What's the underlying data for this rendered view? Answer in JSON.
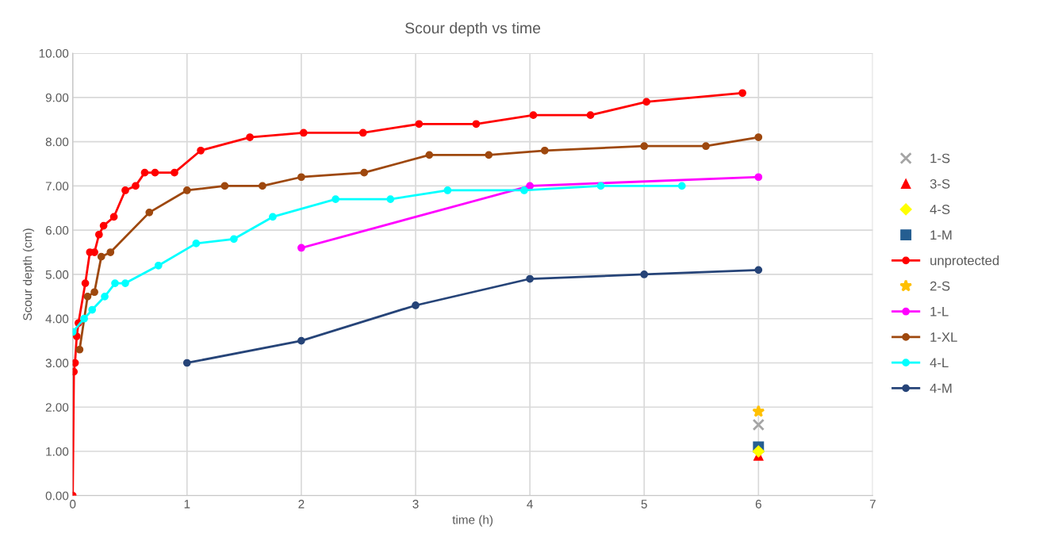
{
  "chart_data": {
    "type": "line",
    "title": "Scour depth vs time",
    "xlabel": "time (h)",
    "ylabel": "Scour depth (cm)",
    "xlim": [
      0,
      7
    ],
    "xticks": [
      0,
      1,
      2,
      3,
      4,
      5,
      6,
      7
    ],
    "ylim": [
      0,
      10
    ],
    "yticks": [
      {
        "value": 0,
        "label": "0.00"
      },
      {
        "value": 1,
        "label": "1.00"
      },
      {
        "value": 2,
        "label": "2.00"
      },
      {
        "value": 3,
        "label": "3.00"
      },
      {
        "value": 4,
        "label": "4.00"
      },
      {
        "value": 5,
        "label": "5.00"
      },
      {
        "value": 6,
        "label": "6.00"
      },
      {
        "value": 7,
        "label": "7.00"
      },
      {
        "value": 8,
        "label": "8.00"
      },
      {
        "value": 9,
        "label": "9.00"
      },
      {
        "value": 10,
        "label": "10.00"
      }
    ],
    "grid": true,
    "legend": "right",
    "series": [
      {
        "name": "1-S",
        "type": "scatter",
        "marker": "cross",
        "color": "#a5a5a5",
        "x": [
          6
        ],
        "values": [
          1.6
        ]
      },
      {
        "name": "3-S",
        "type": "scatter",
        "marker": "triangle",
        "color": "#ff0000",
        "x": [
          6
        ],
        "values": [
          0.9
        ]
      },
      {
        "name": "4-S",
        "type": "scatter",
        "marker": "diamond",
        "color": "#ffff00",
        "x": [
          6
        ],
        "values": [
          1.0
        ]
      },
      {
        "name": "1-M",
        "type": "scatter",
        "marker": "square",
        "color": "#255e91",
        "x": [
          6
        ],
        "values": [
          1.1
        ]
      },
      {
        "name": "unprotected",
        "marker": "circle",
        "color": "#ff0000",
        "x": [
          0,
          0.01,
          0.02,
          0.035,
          0.05,
          0.11,
          0.15,
          0.19,
          0.23,
          0.27,
          0.36,
          0.46,
          0.55,
          0.63,
          0.72,
          0.89,
          1.12,
          1.55,
          2.02,
          2.54,
          3.03,
          3.53,
          4.03,
          4.53,
          5.02,
          5.86
        ],
        "values": [
          0,
          2.8,
          3.0,
          3.6,
          3.9,
          4.8,
          5.5,
          5.5,
          5.9,
          6.1,
          6.3,
          6.9,
          7.0,
          7.3,
          7.3,
          7.3,
          7.8,
          8.1,
          8.2,
          8.2,
          8.4,
          8.4,
          8.6,
          8.6,
          8.9,
          9.1
        ]
      },
      {
        "name": "2-S",
        "type": "scatter",
        "marker": "star",
        "color": "#ffc000",
        "x": [
          6
        ],
        "values": [
          1.9
        ]
      },
      {
        "name": "1-L",
        "marker": "circle",
        "color": "#ff00ff",
        "x": [
          2,
          4,
          6
        ],
        "values": [
          5.6,
          7.0,
          7.2
        ]
      },
      {
        "name": "1-XL",
        "marker": "circle",
        "color": "#9e480e",
        "x": [
          0.06,
          0.13,
          0.19,
          0.25,
          0.33,
          0.67,
          1.0,
          1.33,
          1.66,
          2.0,
          2.55,
          3.12,
          3.64,
          4.13,
          5.0,
          5.54,
          6.0
        ],
        "values": [
          3.3,
          4.5,
          4.6,
          5.4,
          5.5,
          6.4,
          6.9,
          7.0,
          7.0,
          7.2,
          7.3,
          7.7,
          7.7,
          7.8,
          7.9,
          7.9,
          8.1
        ]
      },
      {
        "name": "4-L",
        "marker": "circle",
        "color": "#00ffff",
        "x": [
          0,
          0.1,
          0.17,
          0.28,
          0.37,
          0.46,
          0.75,
          1.08,
          1.41,
          1.75,
          2.3,
          2.78,
          3.28,
          3.95,
          4.62,
          5.33
        ],
        "values": [
          3.7,
          4.0,
          4.2,
          4.5,
          4.8,
          4.8,
          5.2,
          5.7,
          5.8,
          6.3,
          6.7,
          6.7,
          6.9,
          6.9,
          7.0,
          7.0
        ]
      },
      {
        "name": "4-M",
        "marker": "circle",
        "color": "#264478",
        "x": [
          1,
          2,
          3,
          4,
          5,
          6
        ],
        "values": [
          3.0,
          3.5,
          4.3,
          4.9,
          5.0,
          5.1
        ]
      }
    ]
  }
}
